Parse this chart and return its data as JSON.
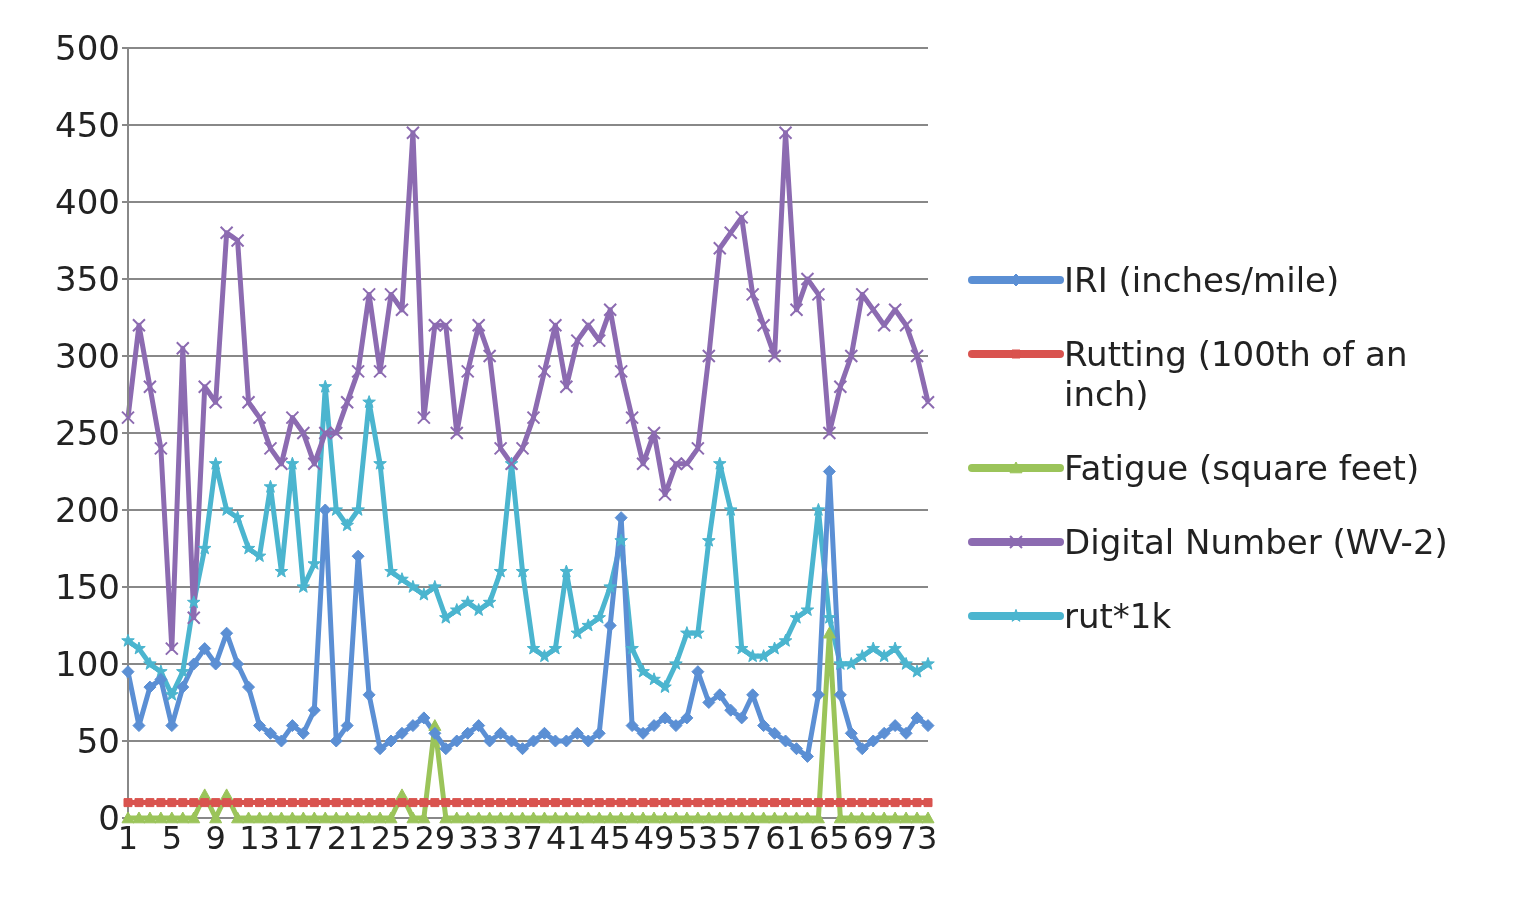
{
  "chart_data": {
    "type": "line",
    "categories": [
      "1",
      null,
      null,
      null,
      "5",
      null,
      null,
      null,
      "9",
      null,
      null,
      null,
      "13",
      null,
      null,
      null,
      "17",
      null,
      null,
      null,
      "21",
      null,
      null,
      null,
      "25",
      null,
      null,
      null,
      "29",
      null,
      null,
      null,
      "33",
      null,
      null,
      null,
      "37",
      null,
      null,
      null,
      "41",
      null,
      null,
      null,
      "45",
      null,
      null,
      null,
      "49",
      null,
      null,
      null,
      "53",
      null,
      null,
      null,
      "57",
      null,
      null,
      null,
      "61",
      null,
      null,
      null,
      "65",
      null,
      null,
      null,
      "69",
      null,
      null,
      null,
      "73",
      null
    ],
    "ylim": [
      0,
      500
    ],
    "yticks": [
      0,
      50,
      100,
      150,
      200,
      250,
      300,
      350,
      400,
      450,
      500
    ],
    "grid": "y",
    "legend": "right",
    "line_style": "solid",
    "series": [
      {
        "name": "IRI (inches/mile)",
        "color": "#5b8fd4",
        "marker": "diamond",
        "values": [
          95,
          60,
          85,
          90,
          60,
          85,
          100,
          110,
          100,
          120,
          100,
          85,
          60,
          55,
          50,
          60,
          55,
          70,
          200,
          50,
          60,
          170,
          80,
          45,
          50,
          55,
          60,
          65,
          55,
          45,
          50,
          55,
          60,
          50,
          55,
          50,
          45,
          50,
          55,
          50,
          50,
          55,
          50,
          55,
          125,
          195,
          60,
          55,
          60,
          65,
          60,
          65,
          95,
          75,
          80,
          70,
          65,
          80,
          60,
          55,
          50,
          45,
          40,
          80,
          225,
          80,
          55,
          45,
          50,
          55,
          60,
          55,
          65,
          60
        ]
      },
      {
        "name": "Rutting (100th of an inch)",
        "color": "#d9534f",
        "marker": "square",
        "values": [
          10,
          10,
          10,
          10,
          10,
          10,
          10,
          10,
          10,
          10,
          10,
          10,
          10,
          10,
          10,
          10,
          10,
          10,
          10,
          10,
          10,
          10,
          10,
          10,
          10,
          10,
          10,
          10,
          10,
          10,
          10,
          10,
          10,
          10,
          10,
          10,
          10,
          10,
          10,
          10,
          10,
          10,
          10,
          10,
          10,
          10,
          10,
          10,
          10,
          10,
          10,
          10,
          10,
          10,
          10,
          10,
          10,
          10,
          10,
          10,
          10,
          10,
          10,
          10,
          10,
          10,
          10,
          10,
          10,
          10,
          10,
          10,
          10,
          10
        ]
      },
      {
        "name": "Fatigue (square feet)",
        "color": "#9bc45a",
        "marker": "triangle",
        "values": [
          0,
          0,
          0,
          0,
          0,
          0,
          0,
          15,
          0,
          15,
          0,
          0,
          0,
          0,
          0,
          0,
          0,
          0,
          0,
          0,
          0,
          0,
          0,
          0,
          0,
          15,
          0,
          0,
          60,
          0,
          0,
          0,
          0,
          0,
          0,
          0,
          0,
          0,
          0,
          0,
          0,
          0,
          0,
          0,
          0,
          0,
          0,
          0,
          0,
          0,
          0,
          0,
          0,
          0,
          0,
          0,
          0,
          0,
          0,
          0,
          0,
          0,
          0,
          0,
          120,
          0,
          0,
          0,
          0,
          0,
          0,
          0,
          0,
          0
        ]
      },
      {
        "name": "Digital Number (WV-2)",
        "color": "#8c6bb1",
        "marker": "cross",
        "values": [
          260,
          320,
          280,
          240,
          110,
          305,
          130,
          280,
          270,
          380,
          375,
          270,
          260,
          240,
          230,
          260,
          250,
          230,
          250,
          250,
          270,
          290,
          340,
          290,
          340,
          330,
          445,
          260,
          320,
          320,
          250,
          290,
          320,
          300,
          240,
          230,
          240,
          260,
          290,
          320,
          280,
          310,
          320,
          310,
          330,
          290,
          260,
          230,
          250,
          210,
          230,
          230,
          240,
          300,
          370,
          380,
          390,
          340,
          320,
          300,
          445,
          330,
          350,
          340,
          250,
          280,
          300,
          340,
          330,
          320,
          330,
          320,
          300,
          270
        ]
      },
      {
        "name": "rut*1k",
        "color": "#4bb5cf",
        "marker": "star",
        "values": [
          115,
          110,
          100,
          95,
          80,
          95,
          140,
          175,
          230,
          200,
          195,
          175,
          170,
          215,
          160,
          230,
          150,
          165,
          280,
          200,
          190,
          200,
          270,
          230,
          160,
          155,
          150,
          145,
          150,
          130,
          135,
          140,
          135,
          140,
          160,
          230,
          160,
          110,
          105,
          110,
          160,
          120,
          125,
          130,
          150,
          180,
          110,
          95,
          90,
          85,
          100,
          120,
          120,
          180,
          230,
          200,
          110,
          105,
          105,
          110,
          115,
          130,
          135,
          200,
          130,
          100,
          100,
          105,
          110,
          105,
          110,
          100,
          95,
          100
        ]
      }
    ]
  }
}
